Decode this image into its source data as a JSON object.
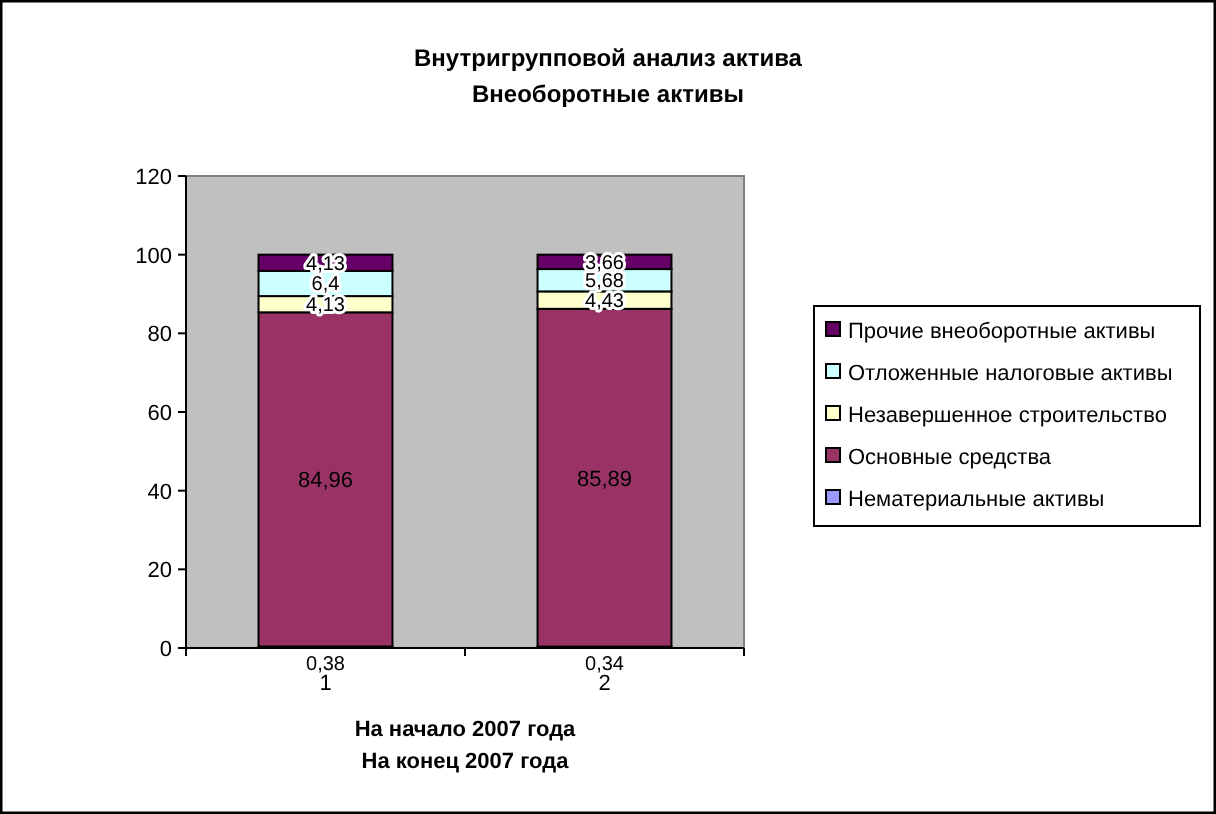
{
  "chart_data": {
    "type": "bar",
    "stacked": true,
    "title": "Внутригрупповой анализ актива\nВнеоборотные активы",
    "xlabel": "На начало 2007 года\nНа конец 2007 года",
    "categories": [
      "1",
      "2"
    ],
    "series": [
      {
        "name": "Нематериальные активы",
        "color": "#9999ff",
        "values": [
          0.38,
          0.34
        ],
        "value_labels": [
          "0,38",
          "0,34"
        ]
      },
      {
        "name": "Основные средства",
        "color": "#993366",
        "values": [
          84.96,
          85.89
        ],
        "value_labels": [
          "84,96",
          "85,89"
        ]
      },
      {
        "name": "Незавершенное строительство",
        "color": "#ffffcc",
        "values": [
          4.13,
          4.43
        ],
        "value_labels": [
          "4,13",
          "4,43"
        ]
      },
      {
        "name": "Отложенные налоговые активы",
        "color": "#ccffff",
        "values": [
          6.4,
          5.68
        ],
        "value_labels": [
          "6,4",
          "5,68"
        ]
      },
      {
        "name": "Прочие внеоборотные активы",
        "color": "#660066",
        "values": [
          4.13,
          3.66
        ],
        "value_labels": [
          "4,13",
          "3,66"
        ]
      }
    ],
    "ylim": [
      0,
      120
    ],
    "yticks": [
      0,
      20,
      40,
      60,
      80,
      100,
      120
    ],
    "grid": false,
    "legend": "right"
  }
}
